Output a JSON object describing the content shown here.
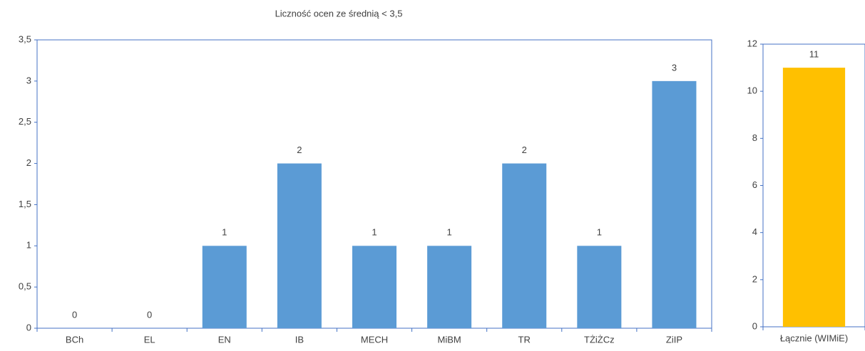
{
  "chart_data": [
    {
      "type": "bar",
      "title": "Liczność ocen ze średnią < 3,5",
      "categories": [
        "BCh",
        "EL",
        "EN",
        "IB",
        "MECH",
        "MiBM",
        "TR",
        "TŻiŻCz",
        "ZiIP"
      ],
      "values": [
        0,
        0,
        1,
        2,
        1,
        1,
        2,
        1,
        3
      ],
      "color": "#5b9bd5",
      "ylim": [
        0,
        3.5
      ],
      "yticks": [
        0,
        {
          "value": 0.5,
          "label": "0,5"
        },
        1,
        {
          "value": 1.5,
          "label": "1,5"
        },
        2,
        {
          "value": 2.5,
          "label": "2,5"
        },
        3,
        {
          "value": 3.5,
          "label": "3,5"
        }
      ]
    },
    {
      "type": "bar",
      "categories": [
        "Łącznie (WIMiE)"
      ],
      "values": [
        11
      ],
      "color": "#ffc000",
      "ylim": [
        0,
        12
      ],
      "yticks": [
        0,
        2,
        4,
        6,
        8,
        10,
        12
      ]
    }
  ]
}
